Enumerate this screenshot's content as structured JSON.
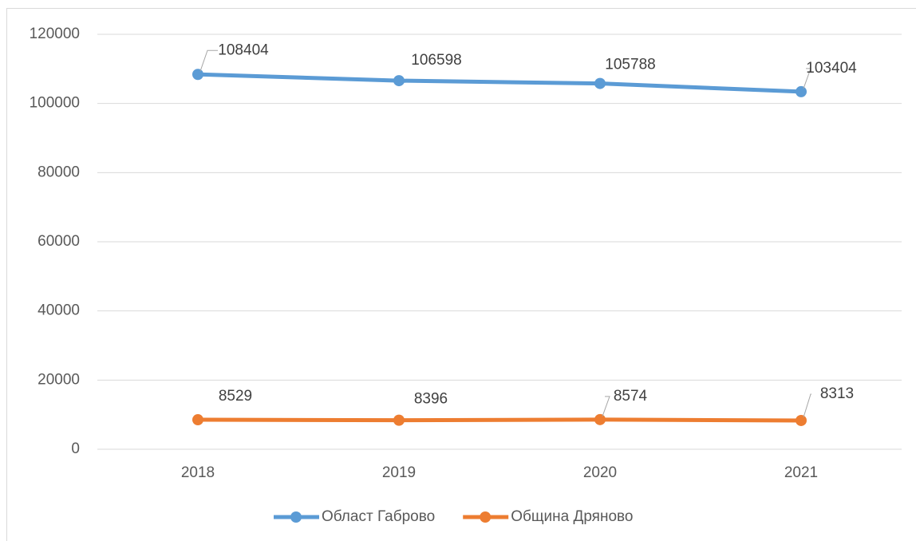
{
  "chart_data": {
    "type": "line",
    "categories": [
      "2018",
      "2019",
      "2020",
      "2021"
    ],
    "series": [
      {
        "name": "Област Габрово",
        "color": "#5b9bd5",
        "values": [
          108404,
          106598,
          105788,
          103404
        ]
      },
      {
        "name": "Община Дряново",
        "color": "#ed7d31",
        "values": [
          8529,
          8396,
          8574,
          8313
        ]
      }
    ],
    "ylim": [
      0,
      120000
    ],
    "yticks": [
      0,
      20000,
      40000,
      60000,
      80000,
      100000,
      120000
    ],
    "grid": true,
    "legend": "bottom",
    "data_labels": true
  }
}
